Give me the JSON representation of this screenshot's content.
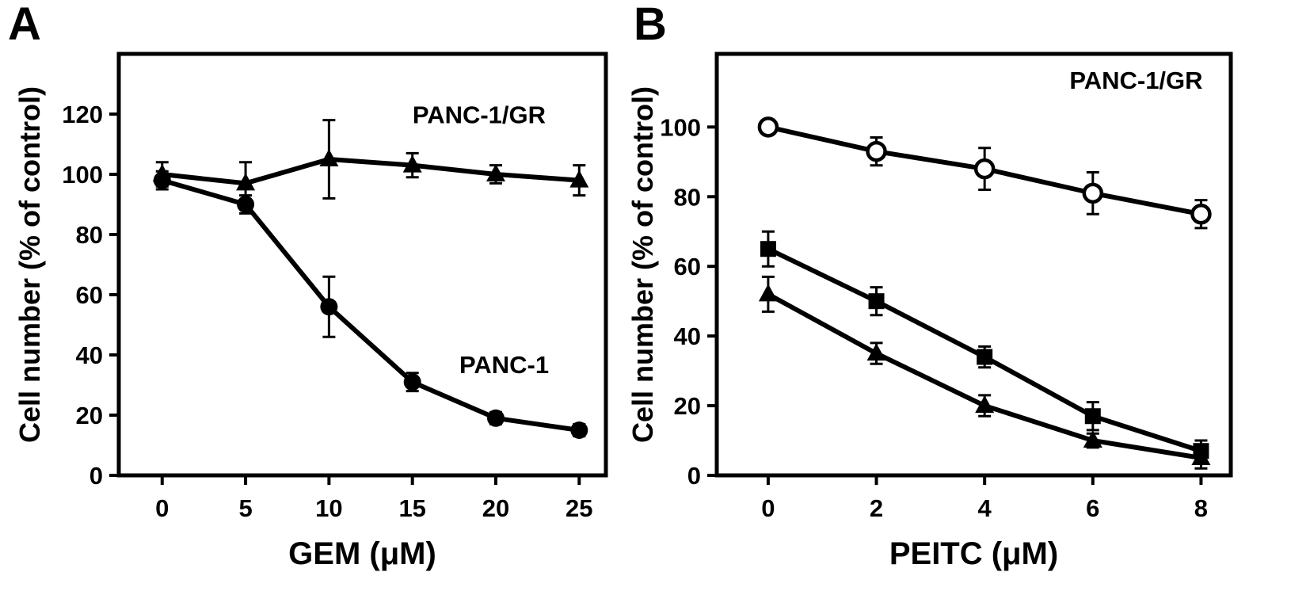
{
  "figure": {
    "background": "#ffffff",
    "line_color": "#000000"
  },
  "chart_data": [
    {
      "type": "line",
      "panel_label": "A",
      "title": "",
      "xlabel": "GEM (μM)",
      "ylabel": "Cell number (% of control)",
      "x": [
        0,
        5,
        10,
        15,
        20,
        25
      ],
      "xticks": [
        0,
        5,
        10,
        15,
        20,
        25
      ],
      "yticks": [
        0,
        20,
        40,
        60,
        80,
        100,
        120
      ],
      "xlim": [
        -2.6,
        26.6
      ],
      "ylim": [
        0,
        140
      ],
      "grid": false,
      "legend": "none (curves labeled by in-plot annotations)",
      "series": [
        {
          "name": "PANC-1",
          "marker": "filled-circle",
          "values": [
            98,
            90,
            56,
            31,
            19,
            15
          ],
          "errors": [
            3,
            3,
            10,
            3,
            2,
            2
          ]
        },
        {
          "name": "PANC-1/GR",
          "marker": "filled-triangle",
          "values": [
            100,
            97,
            105,
            103,
            100,
            98
          ],
          "errors": [
            4,
            7,
            13,
            4,
            3,
            5
          ]
        }
      ],
      "annotations": [
        {
          "text": "PANC-1/GR",
          "x": 19,
          "y": 117
        },
        {
          "text": "PANC-1",
          "x": 20.5,
          "y": 34
        }
      ]
    },
    {
      "type": "line",
      "panel_label": "B",
      "title": "",
      "xlabel": "PEITC (μM)",
      "ylabel": "Cell number (% of control)",
      "x": [
        0,
        2,
        4,
        6,
        8
      ],
      "xticks": [
        0,
        2,
        4,
        6,
        8
      ],
      "yticks": [
        0,
        20,
        40,
        60,
        80,
        100
      ],
      "xlim": [
        -0.95,
        8.55
      ],
      "ylim": [
        0,
        121
      ],
      "grid": false,
      "legend": "none (panel labeled PANC-1/GR top right)",
      "series": [
        {
          "name": "open-circle",
          "marker": "open-circle",
          "values": [
            100,
            93,
            88,
            81,
            75
          ],
          "errors": [
            2,
            4,
            6,
            6,
            4
          ]
        },
        {
          "name": "filled-square",
          "marker": "filled-square",
          "values": [
            65,
            50,
            34,
            17,
            7
          ],
          "errors": [
            5,
            4,
            3,
            4,
            3
          ]
        },
        {
          "name": "filled-triangle",
          "marker": "filled-triangle",
          "values": [
            52,
            35,
            20,
            10,
            5
          ],
          "errors": [
            5,
            3,
            3,
            2,
            3
          ]
        }
      ],
      "annotations": [
        {
          "text": "PANC-1/GR",
          "x": 6.8,
          "y": 111
        }
      ]
    }
  ]
}
